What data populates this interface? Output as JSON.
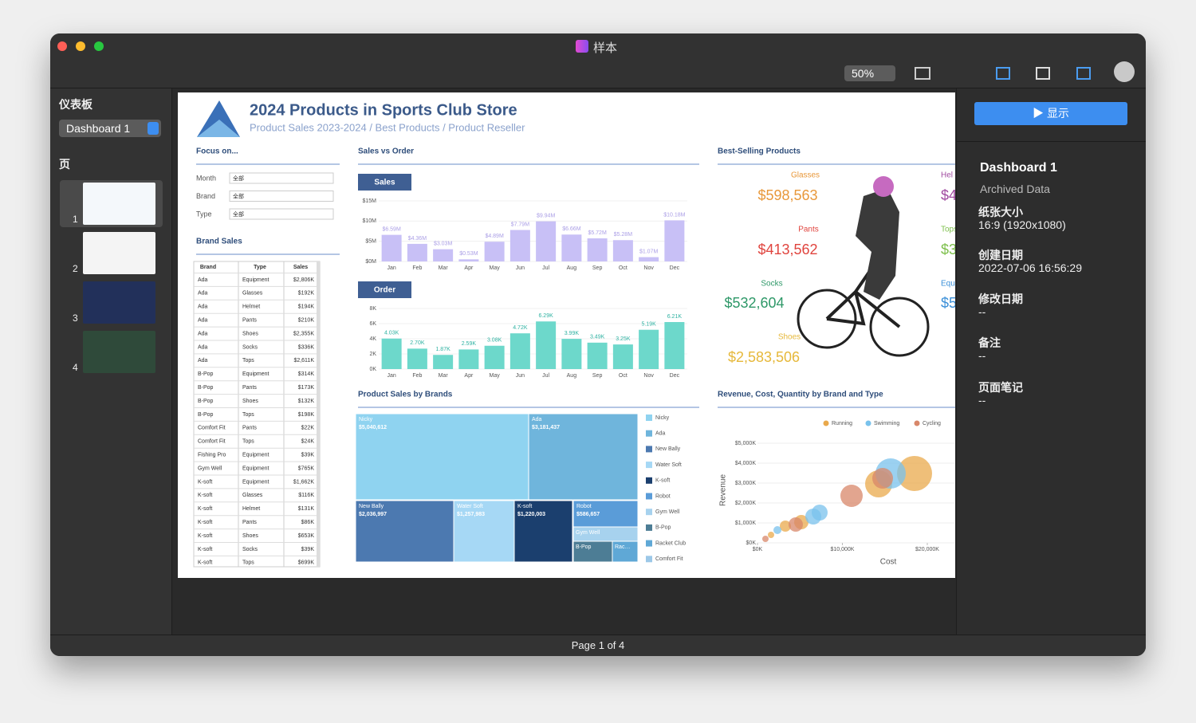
{
  "window": {
    "title": "样本"
  },
  "toolbar": {
    "zoom": "50%"
  },
  "sidebar": {
    "heading": "仪表板",
    "dashboard_select": "Dashboard 1",
    "pages_heading": "页",
    "page_numbers": [
      "1",
      "2",
      "3",
      "4"
    ]
  },
  "dashboard": {
    "title": "2024 Products in Sports Club Store",
    "subtitle": "Product Sales 2023-2024 / Best Products / Product Reseller",
    "focus": {
      "title": "Focus on...",
      "filters": [
        {
          "label": "Month",
          "value": "全部"
        },
        {
          "label": "Brand",
          "value": "全部"
        },
        {
          "label": "Type",
          "value": "全部"
        }
      ]
    },
    "brand_sales": {
      "title": "Brand Sales",
      "columns": [
        "Brand",
        "Type",
        "Sales"
      ],
      "rows": [
        [
          "Ada",
          "Equipment",
          "$2,806K"
        ],
        [
          "Ada",
          "Glasses",
          "$192K"
        ],
        [
          "Ada",
          "Helmet",
          "$194K"
        ],
        [
          "Ada",
          "Pants",
          "$210K"
        ],
        [
          "Ada",
          "Shoes",
          "$2,355K"
        ],
        [
          "Ada",
          "Socks",
          "$336K"
        ],
        [
          "Ada",
          "Tops",
          "$2,611K"
        ],
        [
          "B-Pop",
          "Equipment",
          "$314K"
        ],
        [
          "B-Pop",
          "Pants",
          "$173K"
        ],
        [
          "B-Pop",
          "Shoes",
          "$132K"
        ],
        [
          "B-Pop",
          "Tops",
          "$198K"
        ],
        [
          "Comfort Fit",
          "Pants",
          "$22K"
        ],
        [
          "Comfort Fit",
          "Tops",
          "$24K"
        ],
        [
          "Fishing Pro",
          "Equipment",
          "$39K"
        ],
        [
          "Gym Well",
          "Equipment",
          "$765K"
        ],
        [
          "K-soft",
          "Equipment",
          "$1,662K"
        ],
        [
          "K-soft",
          "Glasses",
          "$116K"
        ],
        [
          "K-soft",
          "Helmet",
          "$131K"
        ],
        [
          "K-soft",
          "Pants",
          "$86K"
        ],
        [
          "K-soft",
          "Shoes",
          "$653K"
        ],
        [
          "K-soft",
          "Socks",
          "$39K"
        ],
        [
          "K-soft",
          "Tops",
          "$699K"
        ]
      ]
    },
    "sales_vs_order": {
      "title": "Sales vs Order",
      "sales": {
        "type": "bar",
        "label": "Sales",
        "color": "#c8c0f6",
        "label_color": "#ab9fe6",
        "categories": [
          "Jan",
          "Feb",
          "Mar",
          "Apr",
          "May",
          "Jun",
          "Jul",
          "Aug",
          "Sep",
          "Oct",
          "Nov",
          "Dec"
        ],
        "values": [
          6.59,
          4.36,
          3.03,
          0.53,
          4.89,
          7.79,
          9.94,
          6.66,
          5.72,
          5.28,
          1.07,
          10.18
        ],
        "value_labels": [
          "$6.59M",
          "$4.36M",
          "$3.03M",
          "$0.53M",
          "$4.89M",
          "$7.79M",
          "$9.94M",
          "$6.66M",
          "$5.72M",
          "$5.28M",
          "$1.07M",
          "$10.18M"
        ],
        "ylim": [
          0,
          15
        ],
        "yticks": [
          {
            "value": 0,
            "label": "$0M"
          },
          {
            "value": 5,
            "label": "$5M"
          },
          {
            "value": 10,
            "label": "$10M"
          },
          {
            "value": 15,
            "label": "$15M"
          }
        ]
      },
      "order": {
        "type": "bar",
        "label": "Order",
        "color": "#6dd8cb",
        "label_color": "#2fb2a2",
        "categories": [
          "Jan",
          "Feb",
          "Mar",
          "Apr",
          "May",
          "Jun",
          "Jul",
          "Aug",
          "Sep",
          "Oct",
          "Nov",
          "Dec"
        ],
        "values": [
          4.03,
          2.7,
          1.87,
          2.59,
          3.08,
          4.72,
          6.29,
          3.99,
          3.49,
          3.25,
          5.19,
          6.21
        ],
        "value_labels": [
          "4.03K",
          "2.70K",
          "1.87K",
          "2.59K",
          "3.08K",
          "4.72K",
          "6.29K",
          "3.99K",
          "3.49K",
          "3.25K",
          "5.19K",
          "6.21K"
        ],
        "ylim": [
          0,
          8
        ],
        "yticks": [
          {
            "value": 0,
            "label": "0K"
          },
          {
            "value": 2,
            "label": "2K"
          },
          {
            "value": 4,
            "label": "4K"
          },
          {
            "value": 6,
            "label": "6K"
          },
          {
            "value": 8,
            "label": "8K"
          }
        ]
      }
    },
    "best_selling": {
      "title": "Best-Selling Products",
      "items": [
        {
          "name": "Glasses",
          "value_label": "$598,563",
          "color": "#e8983a"
        },
        {
          "name": "Pants",
          "value_label": "$413,562",
          "color": "#e0443e"
        },
        {
          "name": "Socks",
          "value_label": "$532,604",
          "color": "#2e9868"
        },
        {
          "name": "Shoes",
          "value_label": "$2,583,506",
          "color": "#e6b83a"
        },
        {
          "name": "Hel",
          "value_label": "$4",
          "color": "#a04aa0"
        },
        {
          "name": "Tops",
          "value_label": "$3",
          "color": "#7cbf4a"
        },
        {
          "name": "Equ",
          "value_label": "$5",
          "color": "#3a8fd8"
        }
      ]
    },
    "treemap": {
      "title": "Product Sales by Brands",
      "tiles": [
        {
          "name": "Nicky",
          "value": 5040612,
          "value_label": "$5,040,612"
        },
        {
          "name": "Ada",
          "value": 3181437,
          "value_label": "$3,181,437"
        },
        {
          "name": "New Bally",
          "value": 2036997,
          "value_label": "$2,036,997"
        },
        {
          "name": "Water Soft",
          "value": 1257983,
          "value_label": "$1,257,983"
        },
        {
          "name": "K-soft",
          "value": 1220003,
          "value_label": "$1,220,003"
        },
        {
          "name": "Robot",
          "value": 586657,
          "value_label": "$586,657"
        }
      ],
      "small_tiles": [
        "Gym Well",
        "B-Pop",
        "Rac…"
      ],
      "legend": [
        {
          "name": "Nicky",
          "color": "#8fd3f0"
        },
        {
          "name": "Ada",
          "color": "#6fb5dc"
        },
        {
          "name": "New Bally",
          "color": "#4c79b0"
        },
        {
          "name": "Water Soft",
          "color": "#a6d8f5"
        },
        {
          "name": "K-soft",
          "color": "#1b3f6e"
        },
        {
          "name": "Robot",
          "color": "#5a9cd8"
        },
        {
          "name": "Gym Well",
          "color": "#a7d2ee"
        },
        {
          "name": "B-Pop",
          "color": "#4d7d95"
        },
        {
          "name": "Racket Club",
          "color": "#5fa8d6"
        },
        {
          "name": "Comfort Fit",
          "color": "#9cc8e8"
        }
      ]
    },
    "scatter": {
      "type": "scatter",
      "title": "Revenue, Cost, Quantity by Brand and Type",
      "xlabel": "Cost",
      "ylabel": "Revenue",
      "xlim": [
        0,
        23000
      ],
      "ylim": [
        0,
        5000
      ],
      "xticks": [
        {
          "value": 0,
          "label": "$0K"
        },
        {
          "value": 10000,
          "label": "$10,000K"
        },
        {
          "value": 20000,
          "label": "$20,000K"
        }
      ],
      "yticks": [
        {
          "value": 0,
          "label": "$0K"
        },
        {
          "value": 1000,
          "label": "$1,000K"
        },
        {
          "value": 2000,
          "label": "$2,000K"
        },
        {
          "value": 3000,
          "label": "$3,000K"
        },
        {
          "value": 4000,
          "label": "$4,000K"
        },
        {
          "value": 5000,
          "label": "$5,000K"
        }
      ],
      "series": [
        {
          "name": "Running",
          "color": "#e9a94c",
          "x": [
            1596,
            3286,
            5164,
            14272,
            18498
          ],
          "y": [
            400,
            840,
            1040,
            2960,
            3480
          ],
          "size": [
            4,
            7,
            9,
            17,
            22
          ]
        },
        {
          "name": "Swimming",
          "color": "#79c2ec",
          "x": [
            2347,
            6573,
            7324,
            15681
          ],
          "y": [
            640,
            1320,
            1520,
            3480
          ],
          "size": [
            5,
            10,
            10,
            19
          ]
        },
        {
          "name": "Cycling",
          "color": "#d8876a",
          "x": [
            939,
            4507,
            11080,
            14742
          ],
          "y": [
            200,
            920,
            2360,
            3240
          ],
          "size": [
            4,
            9,
            14,
            13
          ]
        }
      ]
    }
  },
  "right_panel": {
    "button": "显示",
    "name": "Dashboard 1",
    "subtitle": "Archived Data",
    "fields": [
      {
        "label": "纸张大小",
        "value": "16:9 (1920x1080)"
      },
      {
        "label": "创建日期",
        "value": "2022-07-06 16:56:29"
      },
      {
        "label": "修改日期",
        "value": "--"
      },
      {
        "label": "备注",
        "value": "--"
      },
      {
        "label": "页面笔记",
        "value": "--"
      }
    ]
  },
  "footer": {
    "page": "Page 1 of 4"
  }
}
